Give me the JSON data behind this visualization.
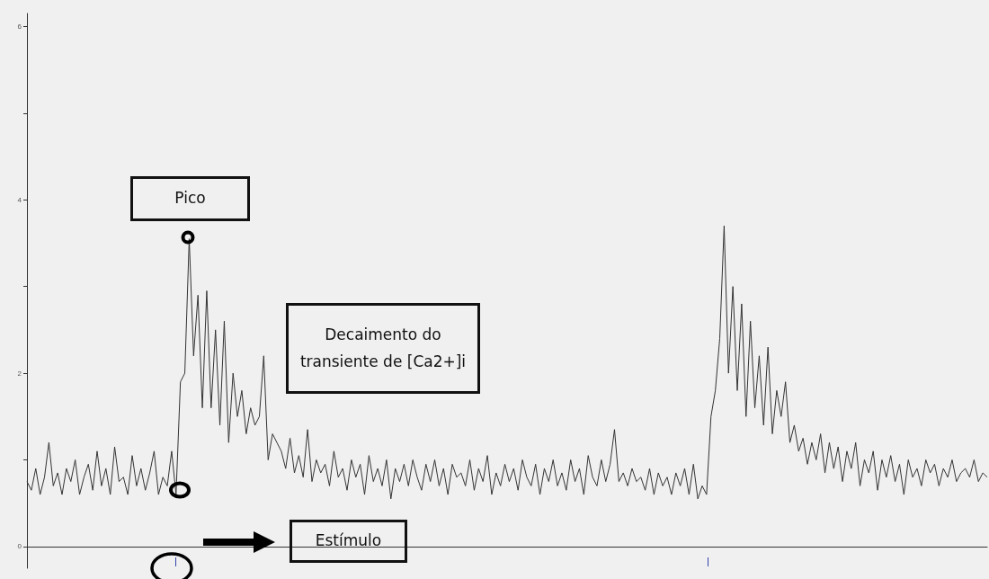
{
  "chart_data": {
    "type": "line",
    "categories": [
      null,
      null,
      null,
      null,
      null,
      null,
      null,
      null,
      null,
      null,
      null,
      null,
      null,
      null,
      null,
      null,
      null,
      null,
      null,
      null,
      null,
      null,
      null,
      null,
      null,
      null,
      null,
      null,
      null,
      null,
      null,
      null,
      null,
      null,
      null,
      null,
      null,
      null,
      null,
      null,
      null,
      null,
      null,
      null,
      null,
      null,
      null,
      null,
      null,
      null,
      null,
      null,
      null,
      null,
      null,
      null,
      null,
      null,
      null,
      null,
      null,
      null,
      null,
      null,
      null,
      null,
      null,
      null,
      null,
      null,
      null,
      null,
      null,
      null,
      null,
      null,
      null,
      null,
      null,
      null,
      null,
      null,
      null,
      null,
      null,
      null,
      null,
      null,
      null,
      null,
      null,
      null,
      null,
      null,
      null,
      null,
      null,
      null,
      null,
      null,
      null,
      null,
      null,
      null,
      null,
      null,
      null,
      null,
      null,
      null,
      null,
      null,
      null,
      null,
      null,
      null,
      null,
      null,
      null,
      null,
      null,
      null,
      null,
      null,
      null,
      null,
      null,
      null,
      null,
      null,
      null,
      null,
      null,
      null,
      null,
      null,
      null,
      null,
      null,
      null,
      null,
      null,
      null,
      null,
      null,
      null,
      null,
      null,
      null,
      null,
      null,
      null,
      null,
      null,
      null,
      null,
      null,
      null,
      null,
      null,
      null,
      null,
      null,
      null,
      null,
      null,
      null,
      null,
      null,
      null,
      null,
      null,
      null,
      null,
      null,
      null,
      null,
      null,
      null,
      null,
      null,
      null,
      null,
      null,
      null,
      null,
      null,
      null,
      null,
      null,
      null,
      null,
      null,
      null,
      null,
      null,
      null,
      null,
      null,
      null,
      null,
      null,
      null,
      null,
      null,
      null,
      null,
      null,
      null,
      null,
      null,
      null,
      null,
      null,
      null,
      null,
      null,
      null,
      null,
      null
    ],
    "series": [
      {
        "color": "#333333",
        "values": [
          0.75,
          0.65,
          0.9,
          0.6,
          0.8,
          1.2,
          0.7,
          0.85,
          0.6,
          0.9,
          0.75,
          1.0,
          0.6,
          0.8,
          0.95,
          0.65,
          1.1,
          0.7,
          0.9,
          0.6,
          1.15,
          0.75,
          0.8,
          0.6,
          1.05,
          0.7,
          0.9,
          0.65,
          0.85,
          1.1,
          0.6,
          0.8,
          0.7,
          1.1,
          0.6,
          1.9,
          2.0,
          3.55,
          2.2,
          2.9,
          1.6,
          2.95,
          1.6,
          2.5,
          1.4,
          2.6,
          1.2,
          2.0,
          1.5,
          1.8,
          1.3,
          1.6,
          1.4,
          1.5,
          2.2,
          1.0,
          1.3,
          1.2,
          1.1,
          0.9,
          1.25,
          0.85,
          1.05,
          0.8,
          1.35,
          0.75,
          1.0,
          0.85,
          0.95,
          0.7,
          1.1,
          0.8,
          0.9,
          0.65,
          1.0,
          0.8,
          0.95,
          0.6,
          1.05,
          0.75,
          0.9,
          0.7,
          1.0,
          0.55,
          0.9,
          0.75,
          0.95,
          0.7,
          1.0,
          0.8,
          0.65,
          0.95,
          0.75,
          1.0,
          0.7,
          0.9,
          0.6,
          0.95,
          0.8,
          0.85,
          0.7,
          1.0,
          0.65,
          0.9,
          0.75,
          1.05,
          0.6,
          0.85,
          0.7,
          0.95,
          0.75,
          0.9,
          0.65,
          1.0,
          0.8,
          0.7,
          0.95,
          0.6,
          0.9,
          0.75,
          1.0,
          0.7,
          0.85,
          0.65,
          1.0,
          0.75,
          0.9,
          0.6,
          1.05,
          0.8,
          0.7,
          1.0,
          0.75,
          0.95,
          1.35,
          0.75,
          0.85,
          0.7,
          0.9,
          0.75,
          0.8,
          0.65,
          0.9,
          0.6,
          0.85,
          0.7,
          0.8,
          0.6,
          0.85,
          0.7,
          0.9,
          0.6,
          0.95,
          0.55,
          0.7,
          0.6,
          1.5,
          1.8,
          2.4,
          3.7,
          2.0,
          3.0,
          1.8,
          2.8,
          1.5,
          2.6,
          1.6,
          2.2,
          1.4,
          2.3,
          1.3,
          1.8,
          1.5,
          1.9,
          1.2,
          1.4,
          1.1,
          1.25,
          0.95,
          1.2,
          1.0,
          1.3,
          0.85,
          1.2,
          0.9,
          1.15,
          0.75,
          1.1,
          0.9,
          1.2,
          0.7,
          1.0,
          0.85,
          1.1,
          0.65,
          1.0,
          0.8,
          1.05,
          0.75,
          0.95,
          0.6,
          1.0,
          0.8,
          0.9,
          0.7,
          1.0,
          0.85,
          0.95,
          0.7,
          0.9,
          0.8,
          1.0,
          0.75,
          0.85,
          0.9,
          0.8,
          1.0,
          0.75,
          0.85,
          0.8
        ]
      }
    ],
    "ylim": [
      -0.25,
      6.15
    ],
    "yticks": [
      0,
      {
        "value": 1,
        "label": null
      },
      2,
      {
        "value": 3,
        "label": null
      },
      4,
      {
        "value": 5,
        "label": null
      },
      6
    ],
    "annotations": [
      "Pico",
      "Decaimento do transiente de [Ca2+]i",
      "Estímulo"
    ],
    "line_style": "solid",
    "tick_labels": "y"
  }
}
